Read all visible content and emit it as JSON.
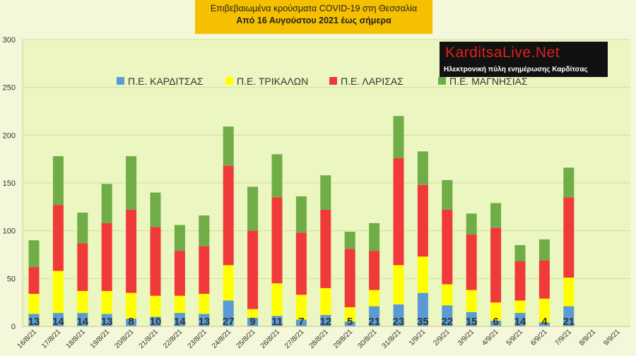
{
  "header": {
    "title": "Επιβεβαιωμένα κρούσματα COVID-19 στη Θεσσαλία",
    "subtitle": "Από 16 Αυγούστου 2021 έως σήμερα"
  },
  "logo": {
    "brand": "KarditsaLive.Net",
    "tagline": "Ηλεκτρονική πύλη ενημέρωσης Καρδίτσας"
  },
  "chart_data": {
    "type": "bar",
    "stacked": true,
    "categories": [
      "16/8/21",
      "17/8/21",
      "18/8/21",
      "19/8/21",
      "20/8/21",
      "21/8/21",
      "22/8/21",
      "23/8/21",
      "24/8/21",
      "25/8/21",
      "26/8/21",
      "27/8/21",
      "28/8/21",
      "29/8/21",
      "30/8/21",
      "31/8/21",
      "1/9/21",
      "2/9/21",
      "3/9/21",
      "4/9/21",
      "5/9/21",
      "6/9/21",
      "7/9/21",
      "8/9/21",
      "9/9/21"
    ],
    "ylim": [
      0,
      300
    ],
    "yticks": [
      0,
      50,
      100,
      150,
      200,
      250,
      300
    ],
    "grid": true,
    "legend": "top",
    "series": [
      {
        "name": "Π.Ε. ΚΑΡΔΙΤΣΑΣ",
        "color": "#5b9bd5",
        "values": [
          13,
          14,
          14,
          13,
          8,
          10,
          14,
          13,
          27,
          9,
          11,
          7,
          12,
          5,
          21,
          23,
          35,
          22,
          15,
          6,
          14,
          4,
          21,
          null,
          null
        ]
      },
      {
        "name": "Π.Ε. ΤΡΙΚΑΛΩΝ",
        "color": "#ffff00",
        "values": [
          21,
          44,
          23,
          24,
          27,
          22,
          18,
          21,
          37,
          9,
          34,
          26,
          28,
          15,
          17,
          41,
          38,
          22,
          23,
          19,
          13,
          25,
          30,
          null,
          null
        ]
      },
      {
        "name": "Π.Ε. ΛΑΡΙΣΑΣ",
        "color": "#f03a3a",
        "values": [
          28,
          69,
          50,
          71,
          87,
          72,
          47,
          50,
          104,
          82,
          90,
          65,
          82,
          61,
          41,
          112,
          75,
          78,
          58,
          78,
          41,
          40,
          84,
          null,
          null
        ]
      },
      {
        "name": "Π.Ε. ΜΑΓΝΗΣΙΑΣ",
        "color": "#70ad47",
        "values": [
          28,
          51,
          32,
          41,
          56,
          36,
          27,
          32,
          41,
          46,
          45,
          38,
          36,
          18,
          29,
          44,
          35,
          31,
          22,
          26,
          17,
          22,
          31,
          null,
          null
        ]
      }
    ],
    "data_labels": [
      13,
      14,
      14,
      13,
      8,
      10,
      14,
      13,
      27,
      9,
      11,
      7,
      12,
      5,
      21,
      23,
      35,
      22,
      15,
      6,
      14,
      4,
      21,
      null,
      null
    ]
  }
}
